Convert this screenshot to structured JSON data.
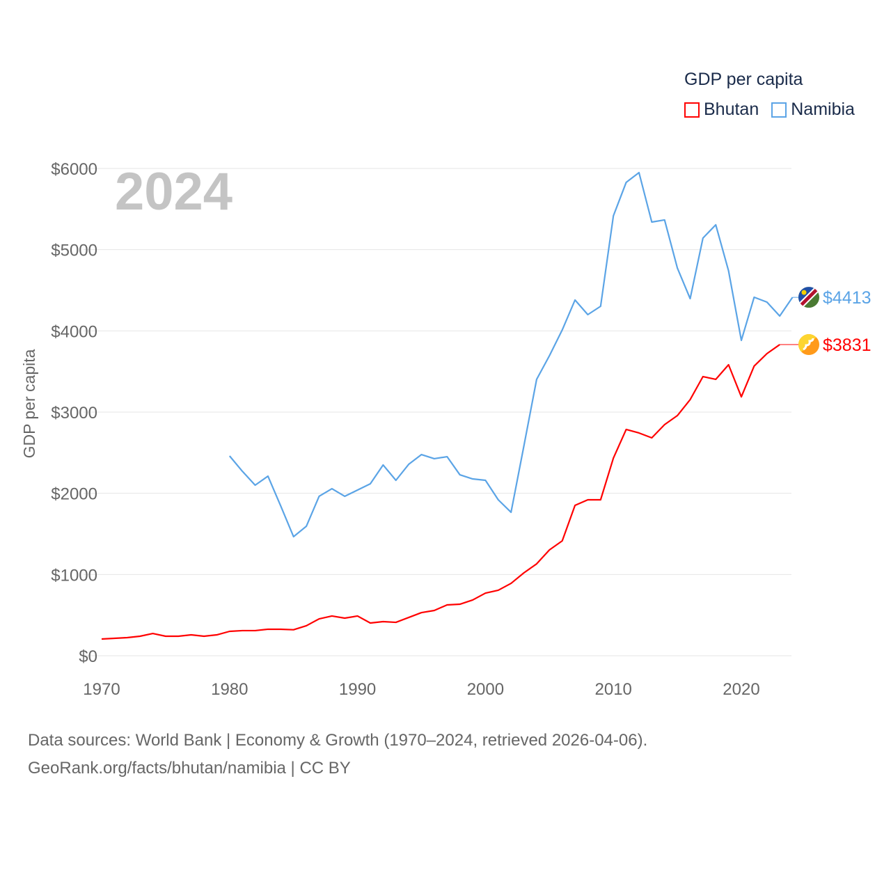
{
  "chart_data": {
    "type": "line",
    "title": "GDP per capita",
    "ylabel": "GDP per capita",
    "xlabel": "",
    "year_label": "2024",
    "xlim": [
      1970,
      2024
    ],
    "ylim": [
      0,
      6000
    ],
    "x_ticks": [
      1970,
      1980,
      1990,
      2000,
      2010,
      2020
    ],
    "y_ticks": [
      0,
      1000,
      2000,
      3000,
      4000,
      5000,
      6000
    ],
    "y_tick_labels": [
      "$0",
      "$1000",
      "$2000",
      "$3000",
      "$4000",
      "$5000",
      "$6000"
    ],
    "grid": true,
    "legend_position": "top-right",
    "series": [
      {
        "name": "Bhutan",
        "color": "#ff0000",
        "end_label": "$3831",
        "icon": "bhutan-flag-icon",
        "x": [
          1970,
          1971,
          1972,
          1973,
          1974,
          1975,
          1976,
          1977,
          1978,
          1979,
          1980,
          1981,
          1982,
          1983,
          1984,
          1985,
          1986,
          1987,
          1988,
          1989,
          1990,
          1991,
          1992,
          1993,
          1994,
          1995,
          1996,
          1997,
          1998,
          1999,
          2000,
          2001,
          2002,
          2003,
          2004,
          2005,
          2006,
          2007,
          2008,
          2009,
          2010,
          2011,
          2012,
          2013,
          2014,
          2015,
          2016,
          2017,
          2018,
          2019,
          2020,
          2021,
          2022,
          2023
        ],
        "values": [
          206,
          214,
          223,
          240,
          274,
          240,
          240,
          257,
          240,
          257,
          300,
          309,
          309,
          326,
          326,
          320,
          369,
          454,
          489,
          463,
          489,
          403,
          420,
          411,
          471,
          531,
          557,
          626,
          634,
          686,
          771,
          806,
          891,
          1020,
          1131,
          1303,
          1414,
          1851,
          1920,
          1920,
          2434,
          2786,
          2743,
          2683,
          2846,
          2957,
          3154,
          3437,
          3403,
          3583,
          3188,
          3566,
          3720,
          3831
        ]
      },
      {
        "name": "Namibia",
        "color": "#5ba4e6",
        "end_label": "$4413",
        "icon": "namibia-flag-icon",
        "x": [
          1980,
          1981,
          1982,
          1983,
          1984,
          1985,
          1986,
          1987,
          1988,
          1989,
          1990,
          1991,
          1992,
          1993,
          1994,
          1995,
          1996,
          1997,
          1998,
          1999,
          2000,
          2001,
          2002,
          2003,
          2004,
          2005,
          2006,
          2007,
          2008,
          2009,
          2010,
          2011,
          2012,
          2013,
          2014,
          2015,
          2016,
          2017,
          2018,
          2019,
          2020,
          2021,
          2022,
          2023,
          2024
        ],
        "values": [
          2460,
          2271,
          2100,
          2211,
          1843,
          1466,
          1594,
          1963,
          2057,
          1963,
          2040,
          2117,
          2349,
          2160,
          2357,
          2477,
          2426,
          2451,
          2228,
          2177,
          2160,
          1920,
          1766,
          2580,
          3403,
          3694,
          4011,
          4380,
          4200,
          4303,
          5417,
          5829,
          5949,
          5340,
          5366,
          4774,
          4397,
          5143,
          5306,
          4740,
          3883,
          4414,
          4354,
          4183,
          4413
        ]
      }
    ]
  },
  "legend": {
    "title": "GDP per capita",
    "items": [
      "Bhutan",
      "Namibia"
    ]
  },
  "footer": {
    "line1": "Data sources: World Bank | Economy & Growth (1970–2024, retrieved 2026-04-06).",
    "line2": "GeoRank.org/facts/bhutan/namibia | CC BY"
  }
}
